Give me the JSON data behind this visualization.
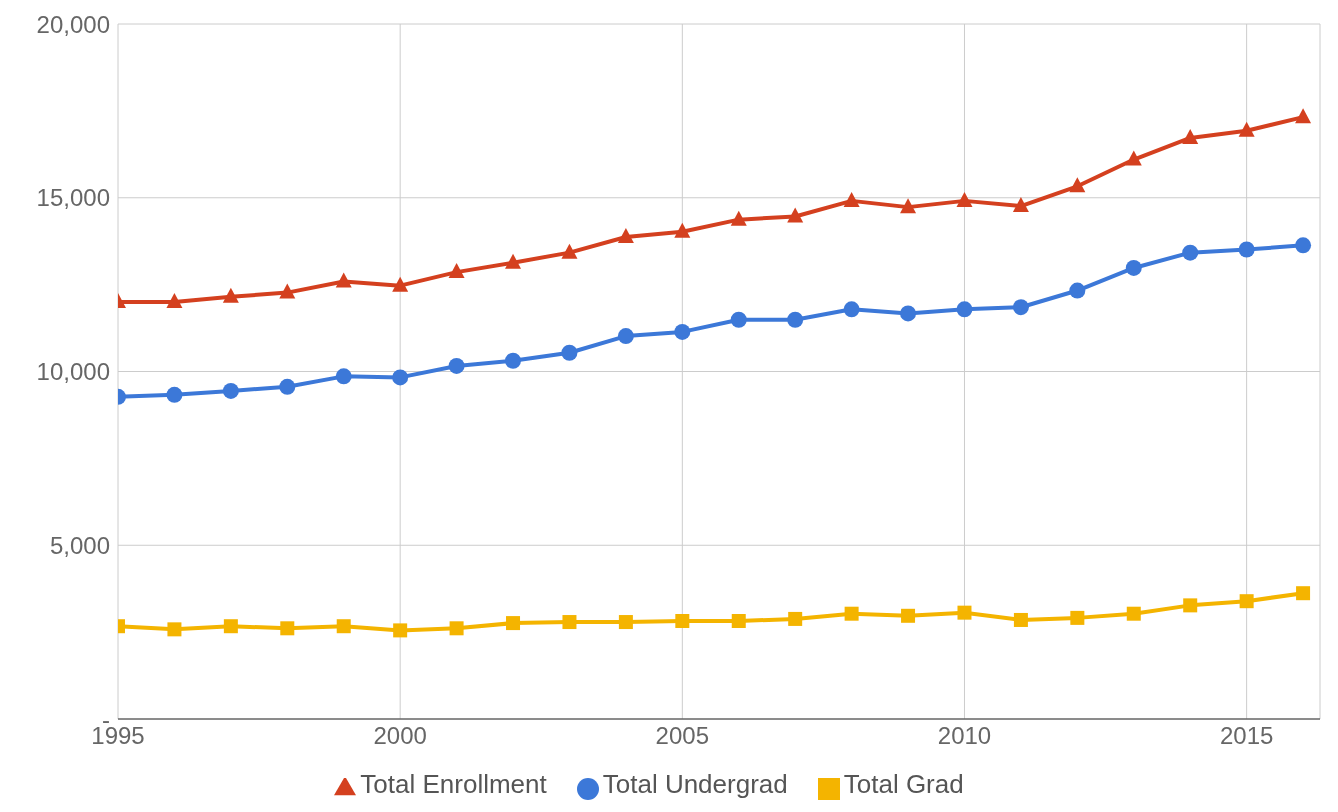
{
  "chart_data": {
    "type": "line",
    "x": [
      1995,
      1996,
      1997,
      1998,
      1999,
      2000,
      2001,
      2002,
      2003,
      2004,
      2005,
      2006,
      2007,
      2008,
      2009,
      2010,
      2011,
      2012,
      2013,
      2014,
      2015,
      2016
    ],
    "series": [
      {
        "name": "Total Enrollment",
        "color": "#d4401f",
        "marker": "triangle",
        "values": [
          12000,
          12000,
          12150,
          12270,
          12590,
          12470,
          12860,
          13130,
          13420,
          13870,
          14020,
          14370,
          14460,
          14910,
          14730,
          14910,
          14760,
          15330,
          16100,
          16720,
          16930,
          17320
        ]
      },
      {
        "name": "Total Undergrad",
        "color": "#3c78d8",
        "marker": "circle",
        "values": [
          9270,
          9330,
          9440,
          9560,
          9860,
          9830,
          10160,
          10310,
          10540,
          11020,
          11140,
          11490,
          11490,
          11790,
          11670,
          11790,
          11850,
          12330,
          12980,
          13420,
          13510,
          13630
        ]
      },
      {
        "name": "Total Grad",
        "color": "#f4b400",
        "marker": "square",
        "values": [
          2670,
          2580,
          2670,
          2610,
          2670,
          2550,
          2610,
          2760,
          2790,
          2790,
          2820,
          2820,
          2880,
          3030,
          2970,
          3060,
          2850,
          2910,
          3030,
          3270,
          3390,
          3620
        ]
      }
    ],
    "xlim": [
      1995,
      2016.3
    ],
    "xticks": [
      1995,
      2000,
      2005,
      2010,
      2015
    ],
    "ylim": [
      0,
      20000
    ],
    "yticks": [
      {
        "value": 0,
        "label": "-"
      },
      {
        "value": 5000,
        "label": "5,000"
      },
      {
        "value": 10000,
        "label": "10,000"
      },
      {
        "value": 15000,
        "label": "15,000"
      },
      {
        "value": 20000,
        "label": "20,000"
      }
    ],
    "grid": true,
    "legend": "bottom",
    "line_style": "solid"
  }
}
